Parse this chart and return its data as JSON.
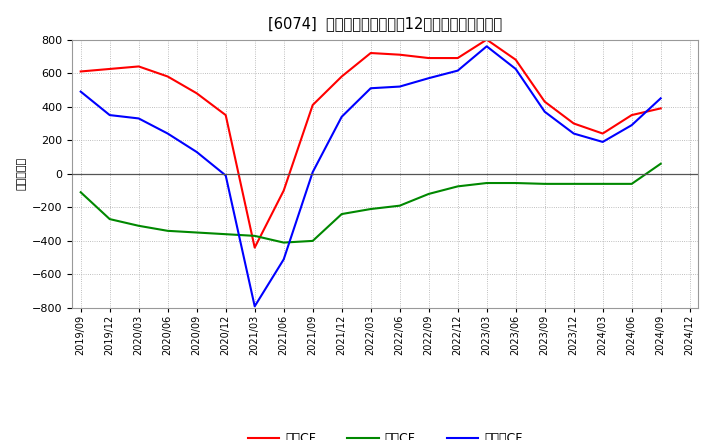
{
  "title": "[6074]  キャッシュフローの12か月移動合計の推移",
  "ylabel": "（百万円）",
  "background_color": "#ffffff",
  "plot_bg_color": "#ffffff",
  "grid_color": "#aaaaaa",
  "xlabels": [
    "2019/09",
    "2019/12",
    "2020/03",
    "2020/06",
    "2020/09",
    "2020/12",
    "2021/03",
    "2021/06",
    "2021/09",
    "2021/12",
    "2022/03",
    "2022/06",
    "2022/09",
    "2022/12",
    "2023/03",
    "2023/06",
    "2023/09",
    "2023/12",
    "2024/03",
    "2024/06",
    "2024/09",
    "2024/12"
  ],
  "eigyo_cf": [
    610,
    625,
    640,
    580,
    480,
    350,
    -440,
    -100,
    410,
    580,
    720,
    710,
    690,
    690,
    800,
    680,
    430,
    300,
    240,
    350,
    390,
    null
  ],
  "toshi_cf": [
    -110,
    -270,
    -310,
    -340,
    -350,
    -360,
    -370,
    -410,
    -400,
    -240,
    -210,
    -190,
    -120,
    -75,
    -55,
    -55,
    -60,
    -60,
    -60,
    -60,
    60,
    null
  ],
  "free_cf": [
    490,
    350,
    330,
    240,
    130,
    -10,
    -790,
    -510,
    10,
    340,
    510,
    520,
    570,
    615,
    760,
    625,
    370,
    240,
    190,
    290,
    450,
    null
  ],
  "ylim": [
    -800,
    800
  ],
  "yticks": [
    -800,
    -600,
    -400,
    -200,
    0,
    200,
    400,
    600,
    800
  ],
  "line_colors": {
    "eigyo": "#ff0000",
    "toshi": "#008800",
    "free": "#0000ff"
  },
  "legend_labels": [
    "営業CF",
    "投資CF",
    "フリーCF"
  ]
}
